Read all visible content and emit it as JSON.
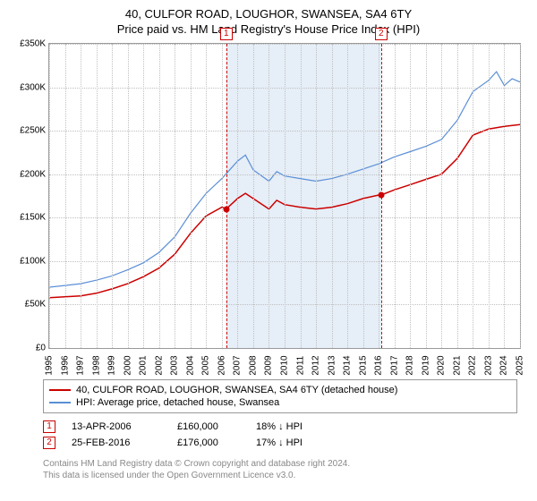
{
  "title_line1": "40, CULFOR ROAD, LOUGHOR, SWANSEA, SA4 6TY",
  "title_line2": "Price paid vs. HM Land Registry's House Price Index (HPI)",
  "chart": {
    "type": "line",
    "background_color": "#ffffff",
    "grid_color": "#c0c0c0",
    "border_color": "#999999",
    "shade_color": "#e6eef7",
    "ylim": [
      0,
      350000
    ],
    "ytick_step": 50000,
    "yticks": [
      "£0",
      "£50K",
      "£100K",
      "£150K",
      "£200K",
      "£250K",
      "£300K",
      "£350K"
    ],
    "xlim": [
      1995,
      2025
    ],
    "xticks": [
      1995,
      1996,
      1997,
      1998,
      1999,
      2000,
      2001,
      2002,
      2003,
      2004,
      2005,
      2006,
      2007,
      2008,
      2009,
      2010,
      2011,
      2012,
      2013,
      2014,
      2015,
      2016,
      2017,
      2018,
      2019,
      2020,
      2021,
      2022,
      2023,
      2024,
      2025
    ],
    "shade_range": [
      2006.28,
      2016.15
    ],
    "series": [
      {
        "name": "red",
        "color": "#cc0000",
        "line_width": 1.5,
        "data": [
          [
            1995,
            58000
          ],
          [
            1996,
            59000
          ],
          [
            1997,
            60000
          ],
          [
            1998,
            63000
          ],
          [
            1999,
            68000
          ],
          [
            2000,
            74000
          ],
          [
            2001,
            82000
          ],
          [
            2002,
            92000
          ],
          [
            2003,
            108000
          ],
          [
            2004,
            132000
          ],
          [
            2005,
            152000
          ],
          [
            2006,
            162000
          ],
          [
            2006.28,
            160000
          ],
          [
            2007,
            172000
          ],
          [
            2007.5,
            178000
          ],
          [
            2008,
            172000
          ],
          [
            2009,
            160000
          ],
          [
            2009.5,
            170000
          ],
          [
            2010,
            165000
          ],
          [
            2011,
            162000
          ],
          [
            2012,
            160000
          ],
          [
            2013,
            162000
          ],
          [
            2014,
            166000
          ],
          [
            2015,
            172000
          ],
          [
            2016,
            176000
          ],
          [
            2016.15,
            176000
          ],
          [
            2017,
            182000
          ],
          [
            2018,
            188000
          ],
          [
            2019,
            194000
          ],
          [
            2020,
            200000
          ],
          [
            2021,
            218000
          ],
          [
            2022,
            245000
          ],
          [
            2023,
            252000
          ],
          [
            2024,
            255000
          ],
          [
            2025,
            257000
          ]
        ]
      },
      {
        "name": "blue",
        "color": "#5b8fd6",
        "line_width": 1.2,
        "data": [
          [
            1995,
            70000
          ],
          [
            1996,
            72000
          ],
          [
            1997,
            74000
          ],
          [
            1998,
            78000
          ],
          [
            1999,
            83000
          ],
          [
            2000,
            90000
          ],
          [
            2001,
            98000
          ],
          [
            2002,
            110000
          ],
          [
            2003,
            128000
          ],
          [
            2004,
            155000
          ],
          [
            2005,
            178000
          ],
          [
            2006,
            195000
          ],
          [
            2007,
            215000
          ],
          [
            2007.5,
            222000
          ],
          [
            2008,
            205000
          ],
          [
            2009,
            192000
          ],
          [
            2009.5,
            203000
          ],
          [
            2010,
            198000
          ],
          [
            2011,
            195000
          ],
          [
            2012,
            192000
          ],
          [
            2013,
            195000
          ],
          [
            2014,
            200000
          ],
          [
            2015,
            206000
          ],
          [
            2016,
            212000
          ],
          [
            2017,
            220000
          ],
          [
            2018,
            226000
          ],
          [
            2019,
            232000
          ],
          [
            2020,
            240000
          ],
          [
            2021,
            262000
          ],
          [
            2022,
            295000
          ],
          [
            2023,
            308000
          ],
          [
            2023.5,
            318000
          ],
          [
            2024,
            302000
          ],
          [
            2024.5,
            310000
          ],
          [
            2025,
            306000
          ]
        ]
      }
    ],
    "markers": [
      {
        "n": "1",
        "x": 2006.28,
        "y": 160000
      },
      {
        "n": "2",
        "x": 2016.15,
        "y": 176000
      }
    ]
  },
  "legend": {
    "rows": [
      {
        "color": "#cc0000",
        "label": "40, CULFOR ROAD, LOUGHOR, SWANSEA, SA4 6TY (detached house)"
      },
      {
        "color": "#5b8fd6",
        "label": "HPI: Average price, detached house, Swansea"
      }
    ]
  },
  "data_rows": [
    {
      "n": "1",
      "date": "13-APR-2006",
      "price": "£160,000",
      "stat": "18% ↓ HPI"
    },
    {
      "n": "2",
      "date": "25-FEB-2016",
      "price": "£176,000",
      "stat": "17% ↓ HPI"
    }
  ],
  "footnote_line1": "Contains HM Land Registry data © Crown copyright and database right 2024.",
  "footnote_line2": "This data is licensed under the Open Government Licence v3.0."
}
